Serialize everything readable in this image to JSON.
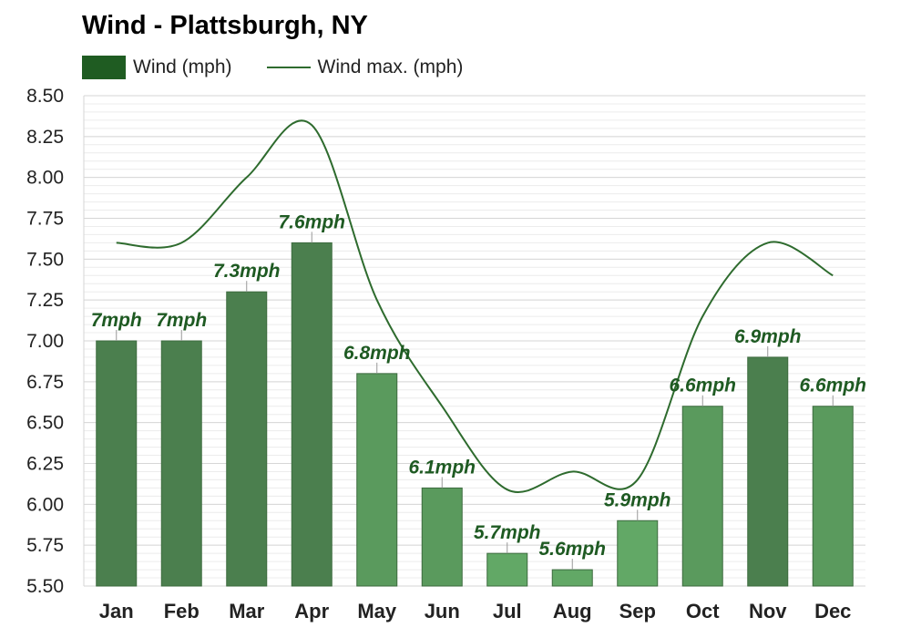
{
  "chart_data": {
    "type": "bar",
    "title": "Wind - Plattsburgh, NY",
    "categories": [
      "Jan",
      "Feb",
      "Mar",
      "Apr",
      "May",
      "Jun",
      "Jul",
      "Aug",
      "Sep",
      "Oct",
      "Nov",
      "Dec"
    ],
    "series": [
      {
        "name": "Wind (mph)",
        "type": "bar",
        "values": [
          7.0,
          7.0,
          7.3,
          7.6,
          6.8,
          6.1,
          5.7,
          5.6,
          5.9,
          6.6,
          6.9,
          6.6
        ],
        "labels": [
          "7mph",
          "7mph",
          "7.3mph",
          "7.6mph",
          "6.8mph",
          "6.1mph",
          "5.7mph",
          "5.6mph",
          "5.9mph",
          "6.6mph",
          "6.9mph",
          "6.6mph"
        ],
        "colors": [
          "#4b7f4e",
          "#4b7f4e",
          "#4b7f4e",
          "#4b7f4e",
          "#5a9a5d",
          "#5a9a5d",
          "#62a866",
          "#62a866",
          "#62a866",
          "#5a9a5d",
          "#4b7f4e",
          "#5a9a5d"
        ]
      },
      {
        "name": "Wind max. (mph)",
        "type": "line",
        "values": [
          7.6,
          7.6,
          8.0,
          8.32,
          7.25,
          6.6,
          6.09,
          6.2,
          6.15,
          7.15,
          7.6,
          7.4
        ],
        "color": "#2e6b2e"
      }
    ],
    "ylim": [
      5.5,
      8.5
    ],
    "yticks": [
      "5.50",
      "5.75",
      "6.00",
      "6.25",
      "6.50",
      "6.75",
      "7.00",
      "7.25",
      "7.50",
      "7.75",
      "8.00",
      "8.25",
      "8.50"
    ],
    "grid": true,
    "legend_position": "top-left"
  }
}
